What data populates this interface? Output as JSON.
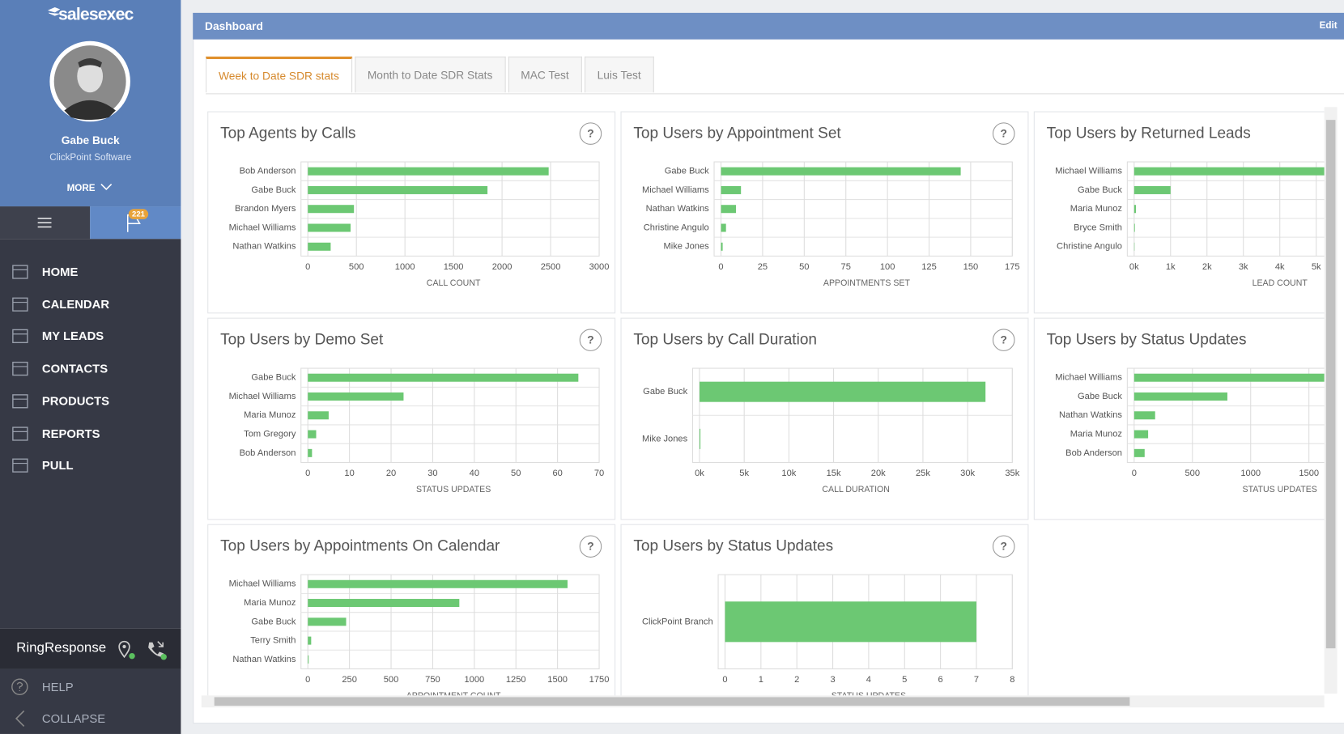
{
  "sidebar": {
    "logo": "salesexec",
    "user_name": "Gabe Buck",
    "company": "ClickPoint Software",
    "more": "MORE",
    "badge": 221,
    "menu": [
      "HOME",
      "CALENDAR",
      "MY LEADS",
      "CONTACTS",
      "PRODUCTS",
      "REPORTS",
      "PULL"
    ],
    "ring_response": "RingResponse",
    "help": "HELP",
    "collapse": "COLLAPSE"
  },
  "header": {
    "title": "Dashboard",
    "edit": "Edit"
  },
  "tabs": [
    "Week to Date SDR stats",
    "Month to Date SDR Stats",
    "MAC Test",
    "Luis Test"
  ],
  "help_icon": "?",
  "chart_data": [
    {
      "type": "bar",
      "title": "Top Agents by Calls",
      "categories": [
        "Bob Anderson",
        "Gabe Buck",
        "Brandon Myers",
        "Michael Williams",
        "Nathan Watkins"
      ],
      "values": [
        2480,
        1850,
        475,
        440,
        235
      ],
      "color": "#6cc873",
      "xlabel": "CALL COUNT",
      "xlim": [
        0,
        3000
      ],
      "xticks": [
        0,
        500,
        1000,
        1500,
        2000,
        2500,
        3000
      ],
      "grid": true
    },
    {
      "type": "bar",
      "title": "Top Users by Appointment Set",
      "categories": [
        "Gabe Buck",
        "Michael Williams",
        "Nathan Watkins",
        "Christine Angulo",
        "Mike Jones"
      ],
      "values": [
        144,
        12,
        9,
        3,
        1
      ],
      "color": "#6cc873",
      "xlabel": "APPOINTMENTS SET",
      "xlim": [
        0,
        175
      ],
      "xticks": [
        0,
        25,
        50,
        75,
        100,
        125,
        150,
        175
      ],
      "grid": true
    },
    {
      "type": "bar",
      "title": "Top Users by Returned Leads",
      "categories": [
        "Michael Williams",
        "Gabe Buck",
        "Maria Munoz",
        "Bryce Smith",
        "Christine Angulo"
      ],
      "values": [
        5500,
        1000,
        50,
        20,
        10
      ],
      "color": "#6cc873",
      "xlabel": "LEAD COUNT",
      "xlim": [
        0,
        8000
      ],
      "xticks": [
        {
          "value": 0,
          "label": "0k"
        },
        {
          "value": 1000,
          "label": "1k"
        },
        {
          "value": 2000,
          "label": "2k"
        },
        {
          "value": 3000,
          "label": "3k"
        },
        {
          "value": 4000,
          "label": "4k"
        },
        {
          "value": 5000,
          "label": "5k"
        }
      ],
      "grid": true
    },
    {
      "type": "bar",
      "title": "Top Users by Demo Set",
      "categories": [
        "Gabe Buck",
        "Michael Williams",
        "Maria Munoz",
        "Tom Gregory",
        "Bob Anderson"
      ],
      "values": [
        65,
        23,
        5,
        2,
        1
      ],
      "color": "#6cc873",
      "xlabel": "STATUS UPDATES",
      "xlim": [
        0,
        70
      ],
      "xticks": [
        0,
        10,
        20,
        30,
        40,
        50,
        60,
        70
      ],
      "grid": true
    },
    {
      "type": "bar",
      "title": "Top Users by Call Duration",
      "categories": [
        "Gabe Buck",
        "Mike Jones"
      ],
      "values": [
        32000,
        100
      ],
      "color": "#6cc873",
      "xlabel": "CALL DURATION",
      "xlim": [
        0,
        35000
      ],
      "xticks": [
        {
          "value": 0,
          "label": "0k"
        },
        {
          "value": 5000,
          "label": "5k"
        },
        {
          "value": 10000,
          "label": "10k"
        },
        {
          "value": 15000,
          "label": "15k"
        },
        {
          "value": 20000,
          "label": "20k"
        },
        {
          "value": 25000,
          "label": "25k"
        },
        {
          "value": 30000,
          "label": "30k"
        },
        {
          "value": 35000,
          "label": "35k"
        }
      ],
      "grid": true
    },
    {
      "type": "bar",
      "title": "Top Users by Status Updates",
      "categories": [
        "Michael Williams",
        "Gabe Buck",
        "Nathan Watkins",
        "Maria Munoz",
        "Bob Anderson"
      ],
      "values": [
        1750,
        800,
        180,
        120,
        90
      ],
      "color": "#6cc873",
      "xlabel": "STATUS UPDATES",
      "xlim": [
        0,
        2500
      ],
      "xticks": [
        0,
        500,
        1000,
        1500
      ],
      "grid": true
    },
    {
      "type": "bar",
      "title": "Top Users by Appointments On Calendar",
      "categories": [
        "Michael Williams",
        "Maria Munoz",
        "Gabe Buck",
        "Terry Smith",
        "Nathan Watkins"
      ],
      "values": [
        1560,
        910,
        230,
        20,
        5
      ],
      "color": "#6cc873",
      "xlabel": "APPOINTMENT COUNT",
      "xlim": [
        0,
        1750
      ],
      "xticks": [
        0,
        250,
        500,
        750,
        1000,
        1250,
        1500,
        1750
      ],
      "grid": true
    },
    {
      "type": "bar",
      "title": "Top Users by Status Updates",
      "categories": [
        "ClickPoint Branch"
      ],
      "values": [
        7
      ],
      "color": "#6cc873",
      "xlabel": "STATUS UPDATES",
      "xlim": [
        0,
        8
      ],
      "xticks": [
        0,
        1,
        2,
        3,
        4,
        5,
        6,
        7,
        8
      ],
      "grid": true
    }
  ]
}
